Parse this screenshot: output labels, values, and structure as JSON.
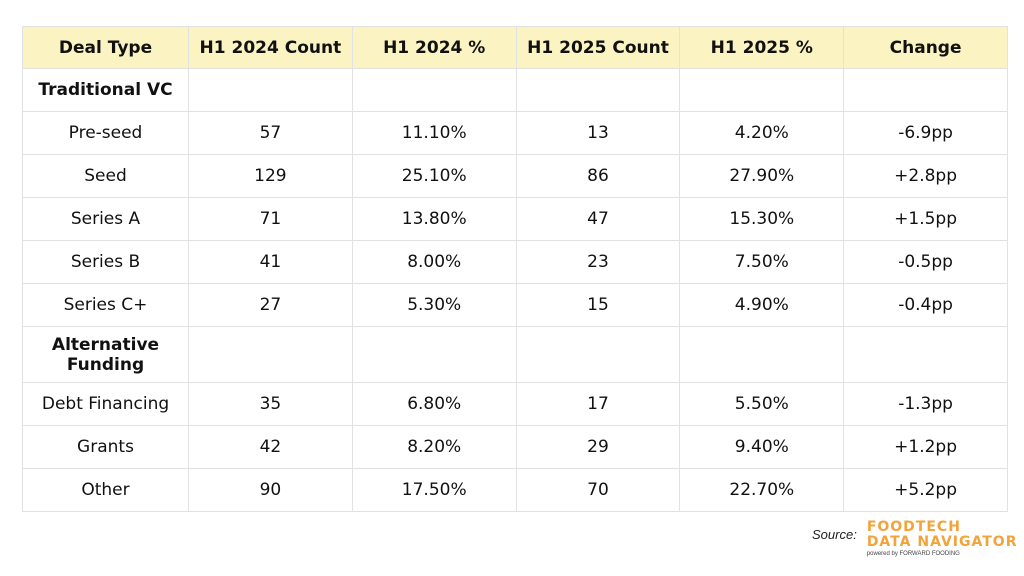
{
  "table": {
    "headers": [
      "Deal Type",
      "H1 2024 Count",
      "H1 2024 %",
      "H1 2025 Count",
      "H1 2025 %",
      "Change"
    ],
    "rows": [
      {
        "type": "section",
        "cells": [
          "Traditional VC",
          "",
          "",
          "",
          "",
          ""
        ]
      },
      {
        "type": "data",
        "cells": [
          "Pre-seed",
          "57",
          "11.10%",
          "13",
          "4.20%",
          "-6.9pp"
        ]
      },
      {
        "type": "data",
        "cells": [
          "Seed",
          "129",
          "25.10%",
          "86",
          "27.90%",
          "+2.8pp"
        ]
      },
      {
        "type": "data",
        "cells": [
          "Series A",
          "71",
          "13.80%",
          "47",
          "15.30%",
          "+1.5pp"
        ]
      },
      {
        "type": "data",
        "cells": [
          "Series B",
          "41",
          "8.00%",
          "23",
          "7.50%",
          "-0.5pp"
        ]
      },
      {
        "type": "data",
        "cells": [
          "Series C+",
          "27",
          "5.30%",
          "15",
          "4.90%",
          "-0.4pp"
        ]
      },
      {
        "type": "section",
        "cells": [
          "Alternative Funding",
          "",
          "",
          "",
          "",
          ""
        ]
      },
      {
        "type": "data",
        "cells": [
          "Debt Financing",
          "35",
          "6.80%",
          "17",
          "5.50%",
          "-1.3pp"
        ]
      },
      {
        "type": "data",
        "cells": [
          "Grants",
          "42",
          "8.20%",
          "29",
          "9.40%",
          "+1.2pp"
        ]
      },
      {
        "type": "data",
        "cells": [
          "Other",
          "90",
          "17.50%",
          "70",
          "22.70%",
          "+5.2pp"
        ]
      }
    ]
  },
  "source": {
    "label": "Source:",
    "logo_line1": "FOODTECH",
    "logo_line2": "DATA NAVIGATOR",
    "logo_line3": "powered by FORWARD FOODING"
  },
  "colors": {
    "header_bg": "#fbf3c2",
    "logo": "#f2a33a",
    "border": "#e2e2e2"
  }
}
